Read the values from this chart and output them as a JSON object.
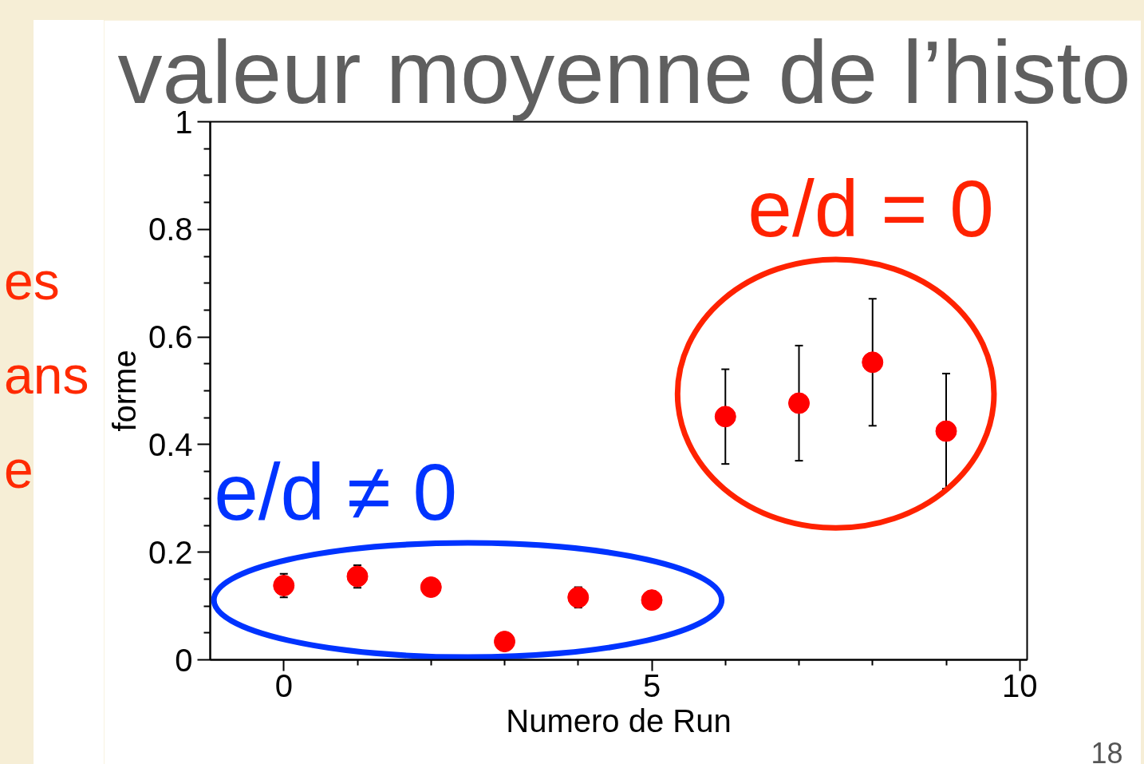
{
  "chart_data": {
    "type": "scatter",
    "title": "valeur moyenne de l’histo",
    "xlabel": "Numero de Run",
    "ylabel": "forme",
    "x": [
      0,
      1,
      2,
      3,
      4,
      5,
      6,
      7,
      8,
      9
    ],
    "values": [
      0.138,
      0.155,
      0.135,
      0.034,
      0.116,
      0.111,
      0.452,
      0.477,
      0.553,
      0.425
    ],
    "errors": [
      0.022,
      0.021,
      null,
      null,
      0.019,
      null,
      0.088,
      0.107,
      0.118,
      0.107
    ],
    "color": "#ff0000",
    "marker": "circle",
    "grid": false,
    "xlim": [
      -1,
      10.1
    ],
    "ylim": [
      0,
      1
    ],
    "xticks": [
      0,
      {
        "value": 1,
        "label": null
      },
      {
        "value": 2,
        "label": null
      },
      {
        "value": 3,
        "label": null
      },
      {
        "value": 4,
        "label": null
      },
      5,
      {
        "value": 6,
        "label": null
      },
      {
        "value": 7,
        "label": null
      },
      {
        "value": 8,
        "label": null
      },
      {
        "value": 9,
        "label": null
      },
      10
    ],
    "yticks": [
      0,
      {
        "value": 0.05,
        "label": null
      },
      {
        "value": 0.1,
        "label": null
      },
      {
        "value": 0.15,
        "label": null
      },
      0.2,
      {
        "value": 0.25,
        "label": null
      },
      {
        "value": 0.3,
        "label": null
      },
      {
        "value": 0.35,
        "label": null
      },
      0.4,
      {
        "value": 0.45,
        "label": null
      },
      {
        "value": 0.5,
        "label": null
      },
      {
        "value": 0.55,
        "label": null
      },
      0.6,
      {
        "value": 0.65,
        "label": null
      },
      {
        "value": 0.7,
        "label": null
      },
      {
        "value": 0.75,
        "label": null
      },
      0.8,
      {
        "value": 0.85,
        "label": null
      },
      {
        "value": 0.9,
        "label": null
      },
      {
        "value": 0.95,
        "label": null
      },
      1
    ],
    "annotations": [
      "e/d = 0",
      "e/d ≠ 0",
      "es",
      "ans",
      "e",
      "18"
    ]
  }
}
